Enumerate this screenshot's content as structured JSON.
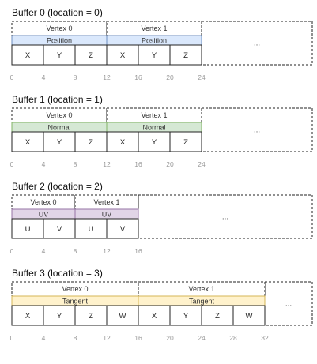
{
  "diagram": {
    "buffers": [
      {
        "title": "Buffer 0 (location = 0)",
        "attribute": "Position",
        "attribute_color": "#dae8fc",
        "attribute_border": "#6c8ebf",
        "vertices": [
          "Vertex 0",
          "Vertex 1"
        ],
        "components": [
          "X",
          "Y",
          "Z",
          "X",
          "Y",
          "Z"
        ],
        "offsets": [
          "0",
          "4",
          "8",
          "12",
          "16",
          "20",
          "24"
        ],
        "ellipsis": "..."
      },
      {
        "title": "Buffer 1 (location = 1)",
        "attribute": "Normal",
        "attribute_color": "#d5e8d4",
        "attribute_border": "#82b366",
        "vertices": [
          "Vertex 0",
          "Vertex 1"
        ],
        "components": [
          "X",
          "Y",
          "Z",
          "X",
          "Y",
          "Z"
        ],
        "offsets": [
          "0",
          "4",
          "8",
          "12",
          "16",
          "20",
          "24"
        ],
        "ellipsis": "..."
      },
      {
        "title": "Buffer 2 (location = 2)",
        "attribute": "UV",
        "attribute_color": "#e1d5e7",
        "attribute_border": "#9673a6",
        "vertices": [
          "Vertex 0",
          "Vertex 1"
        ],
        "components": [
          "U",
          "V",
          "U",
          "V"
        ],
        "offsets": [
          "0",
          "4",
          "8",
          "12",
          "16"
        ],
        "ellipsis": "..."
      },
      {
        "title": "Buffer 3 (location = 3)",
        "attribute": "Tangent",
        "attribute_color": "#fff2cc",
        "attribute_border": "#d6b656",
        "vertices": [
          "Vertex 0",
          "Vertex 1"
        ],
        "components": [
          "X",
          "Y",
          "Z",
          "W",
          "X",
          "Y",
          "Z",
          "W"
        ],
        "offsets": [
          "0",
          "4",
          "8",
          "12",
          "16",
          "20",
          "24",
          "28",
          "32"
        ],
        "ellipsis": "..."
      }
    ]
  }
}
